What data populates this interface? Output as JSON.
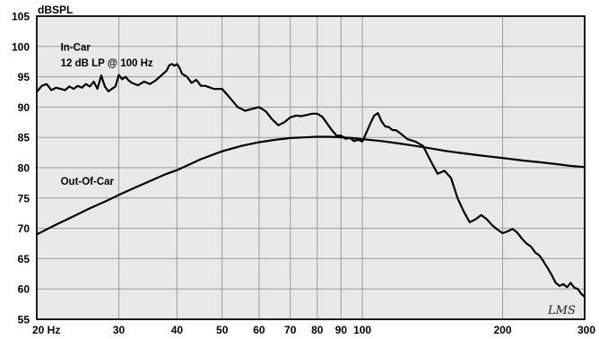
{
  "chart_data": {
    "type": "line",
    "ylabel": "dBSPL",
    "xscale": "log",
    "xlim": [
      20,
      300
    ],
    "ylim": [
      55,
      105
    ],
    "xticks": [
      20,
      30,
      40,
      50,
      60,
      70,
      80,
      90,
      100,
      200,
      300
    ],
    "xtick_labels": [
      "20 Hz",
      "30",
      "40",
      "50",
      "60",
      "70",
      "80",
      "90",
      "100",
      "200",
      "300"
    ],
    "xgrid_minor": [],
    "yticks": [
      55,
      60,
      65,
      70,
      75,
      80,
      85,
      90,
      95,
      100,
      105
    ],
    "ytick_labels": [
      "55",
      "60",
      "65",
      "70",
      "75",
      "80",
      "85",
      "90",
      "95",
      "100",
      "105"
    ],
    "grid": true,
    "annotations": [
      {
        "text": "In-Car",
        "x": 22.5,
        "y": 99.3
      },
      {
        "text": "12 dB LP @ 100 Hz",
        "x": 22.5,
        "y": 96.7
      },
      {
        "text": "Out-Of-Car",
        "x": 22.5,
        "y": 77.2
      }
    ],
    "series": [
      {
        "name": "In-Car",
        "x": [
          20,
          20.5,
          21,
          21.5,
          22,
          22.5,
          23,
          23.5,
          24,
          24.5,
          25,
          25.5,
          26,
          26.5,
          27,
          27.5,
          28,
          28.5,
          29,
          29.5,
          30,
          30.5,
          31,
          31.5,
          32,
          33,
          34,
          35,
          36,
          37,
          38,
          38.5,
          39,
          39.5,
          40,
          40.5,
          41,
          42,
          43,
          44,
          45,
          46,
          48,
          50,
          52,
          54,
          56,
          58,
          60,
          62,
          64,
          66,
          68,
          70,
          72,
          74,
          76,
          78,
          80,
          82,
          84,
          86,
          88,
          90,
          92,
          94,
          96,
          98,
          100,
          102,
          104,
          106,
          108,
          110,
          112,
          114,
          116,
          118,
          120,
          125,
          130,
          135,
          140,
          145,
          150,
          155,
          160,
          165,
          170,
          175,
          180,
          185,
          190,
          195,
          200,
          205,
          210,
          215,
          220,
          225,
          230,
          235,
          240,
          245,
          250,
          255,
          260,
          265,
          270,
          275,
          280,
          285,
          290,
          295,
          300
        ],
        "y": [
          92.5,
          93.5,
          93.8,
          92.8,
          93.2,
          93.0,
          92.8,
          93.4,
          93.0,
          93.5,
          93.2,
          93.8,
          93.4,
          94.2,
          93.0,
          95.2,
          93.4,
          92.6,
          93.0,
          93.4,
          95.3,
          94.6,
          95.0,
          94.4,
          94.0,
          93.6,
          94.2,
          93.8,
          94.4,
          95.2,
          96.0,
          96.9,
          97.1,
          96.8,
          97.1,
          96.5,
          95.5,
          95.0,
          94.0,
          94.5,
          93.5,
          93.5,
          93.0,
          93.0,
          91.5,
          90.0,
          89.4,
          89.7,
          90.0,
          89.3,
          88.0,
          87.0,
          87.5,
          88.3,
          88.6,
          88.5,
          88.7,
          88.9,
          88.9,
          88.4,
          87.3,
          86.2,
          85.3,
          85.3,
          84.8,
          84.9,
          84.4,
          84.6,
          84.3,
          85.8,
          87.3,
          88.6,
          89.0,
          87.6,
          86.8,
          86.7,
          86.2,
          86.2,
          85.8,
          84.7,
          84.3,
          83.6,
          81.2,
          79.0,
          79.5,
          78.3,
          75.0,
          72.8,
          71.0,
          71.5,
          72.2,
          71.5,
          70.5,
          69.8,
          69.2,
          69.5,
          69.9,
          69.3,
          68.3,
          67.5,
          67.0,
          66.0,
          65.5,
          64.5,
          63.4,
          62.3,
          61.0,
          60.5,
          60.8,
          60.3,
          61.0,
          60.2,
          60.0,
          59.2,
          58.7
        ]
      },
      {
        "name": "Out-Of-Car",
        "x": [
          20,
          22,
          24,
          26,
          28,
          30,
          32,
          35,
          38,
          40,
          45,
          50,
          55,
          60,
          65,
          70,
          75,
          80,
          85,
          90,
          95,
          100,
          110,
          120,
          130,
          140,
          150,
          160,
          180,
          200,
          220,
          240,
          260,
          280,
          300
        ],
        "y": [
          69.0,
          70.6,
          72.0,
          73.3,
          74.4,
          75.5,
          76.5,
          77.8,
          79.0,
          79.6,
          81.4,
          82.7,
          83.6,
          84.2,
          84.6,
          84.9,
          85.0,
          85.1,
          85.1,
          85.0,
          84.9,
          84.7,
          84.4,
          84.0,
          83.6,
          83.2,
          82.8,
          82.5,
          82.0,
          81.6,
          81.2,
          80.9,
          80.6,
          80.3,
          80.1
        ]
      }
    ]
  },
  "logo_text": "LMS"
}
